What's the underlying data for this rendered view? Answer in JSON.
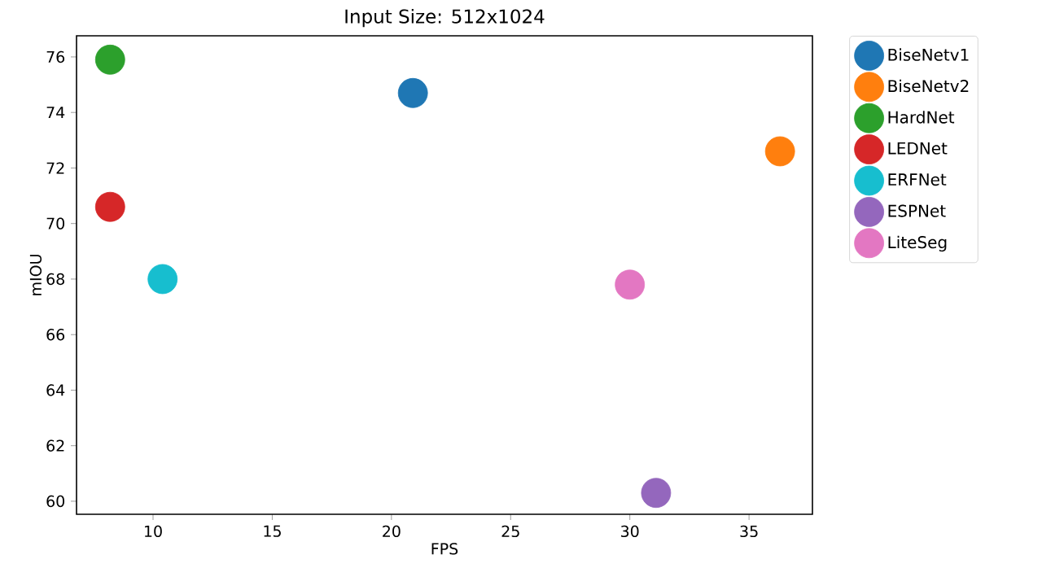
{
  "chart_data": {
    "type": "scatter",
    "title": "Input Size: 512x1024",
    "xlabel": "FPS",
    "ylabel": "mIOU",
    "marker": "circle",
    "legend": "right",
    "xlim": [
      6.79,
      37.66
    ],
    "ylim": [
      59.53,
      76.76
    ],
    "xticks": [
      10,
      15,
      20,
      25,
      30,
      35
    ],
    "yticks": [
      60,
      62,
      64,
      66,
      68,
      70,
      72,
      74,
      76
    ],
    "series": [
      {
        "name": "BiseNetv1",
        "color": "#1f77b4",
        "x": [
          20.9
        ],
        "values": [
          74.7
        ]
      },
      {
        "name": "BiseNetv2",
        "color": "#ff7f0e",
        "x": [
          36.3
        ],
        "values": [
          72.6
        ]
      },
      {
        "name": "HardNet",
        "color": "#2ca02c",
        "x": [
          8.2
        ],
        "values": [
          75.9
        ]
      },
      {
        "name": "LEDNet",
        "color": "#d62728",
        "x": [
          8.2
        ],
        "values": [
          70.6
        ]
      },
      {
        "name": "ERFNet",
        "color": "#17becf",
        "x": [
          10.4
        ],
        "values": [
          68.0
        ]
      },
      {
        "name": "ESPNet",
        "color": "#9467bd",
        "x": [
          31.1
        ],
        "values": [
          60.3
        ]
      },
      {
        "name": "LiteSeg",
        "color": "#e377c2",
        "x": [
          30.0
        ],
        "values": [
          67.8
        ]
      }
    ]
  }
}
